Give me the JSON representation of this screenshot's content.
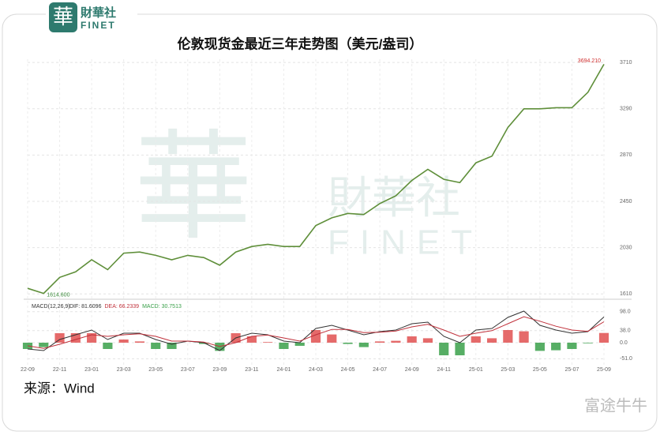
{
  "logo": {
    "mark": "華",
    "name": "財華社",
    "latin": "FINET"
  },
  "chart_data": [
    {
      "type": "line",
      "title": "伦敦现货金最近三年走势图（美元/盎司）",
      "categories": [
        "22-09",
        null,
        "22-11",
        null,
        "23-01",
        null,
        "23-03",
        null,
        "23-05",
        null,
        "23-07",
        null,
        "23-09",
        null,
        "23-11",
        null,
        "24-01",
        null,
        "24-03",
        null,
        "24-05",
        null,
        "24-07",
        null,
        "24-09",
        null,
        "24-11",
        null,
        "25-01",
        null,
        "25-03",
        null,
        "25-05",
        null,
        "25-07",
        null,
        "25-09"
      ],
      "values": [
        1660,
        1614.6,
        1760,
        1810,
        1920,
        1830,
        1980,
        1990,
        1960,
        1920,
        1960,
        1940,
        1870,
        1990,
        2040,
        2060,
        2040,
        2040,
        2230,
        2300,
        2340,
        2330,
        2430,
        2500,
        2640,
        2740,
        2650,
        2620,
        2800,
        2860,
        3120,
        3290,
        3290,
        3300,
        3300,
        3440,
        3694.21
      ],
      "color": "#5f8f3a",
      "max_label": {
        "value": 3694.21,
        "label": "3694.210",
        "color": "#d03030"
      },
      "min_label": {
        "value": 1614.6,
        "label": "1614.600",
        "color": "#3a8a3a"
      },
      "ylim": [
        1590,
        3740
      ],
      "yticks": [
        1610,
        2030,
        2450,
        2870,
        3290,
        3710
      ],
      "grid": true
    },
    {
      "type": "macd",
      "title": "MACD(12,26,9)",
      "series": [
        {
          "name": "DIF: 81.6096",
          "color": "#333333",
          "values": [
            -20,
            -25,
            10,
            25,
            40,
            10,
            30,
            30,
            10,
            -5,
            5,
            0,
            -25,
            15,
            30,
            25,
            5,
            0,
            45,
            55,
            40,
            25,
            35,
            40,
            60,
            65,
            20,
            0,
            40,
            45,
            80,
            100,
            55,
            40,
            30,
            35,
            81.6096
          ]
        },
        {
          "name": "DEA: 66.2339",
          "color": "#c0303a",
          "values": [
            -10,
            -18,
            -5,
            10,
            25,
            20,
            25,
            28,
            20,
            5,
            5,
            2,
            -12,
            0,
            20,
            24,
            15,
            5,
            25,
            42,
            42,
            32,
            33,
            37,
            50,
            58,
            40,
            20,
            30,
            38,
            60,
            82,
            68,
            52,
            40,
            36,
            66.2339
          ]
        },
        {
          "name": "MACD: 30.7513",
          "color": "#3aa04a",
          "up_color": "#e05050",
          "values": [
            -20,
            -14,
            30,
            30,
            30,
            -20,
            10,
            4,
            -20,
            -20,
            0,
            -4,
            -26,
            30,
            20,
            2,
            -20,
            -10,
            40,
            26,
            -4,
            -14,
            4,
            6,
            20,
            14,
            -40,
            -40,
            20,
            14,
            40,
            36,
            -26,
            -24,
            -20,
            -2,
            30.7513
          ]
        }
      ],
      "ylim": [
        -70,
        130
      ],
      "yticks": [
        {
          "value": -51,
          "label": "-51.0"
        },
        {
          "value": 0,
          "label": "0.0"
        },
        {
          "value": 38,
          "label": "38.0"
        },
        {
          "value": 98,
          "label": "98.0"
        }
      ]
    }
  ],
  "source": "来源：Wind",
  "watermark": "富途牛牛"
}
